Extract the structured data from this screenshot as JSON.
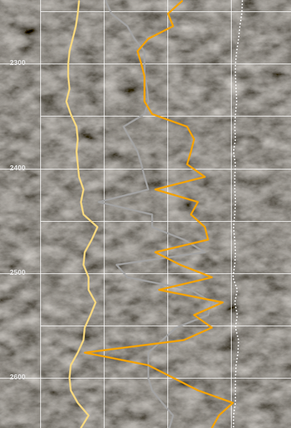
{
  "chart_data": {
    "type": "well_log",
    "y_inverted": true,
    "ylim": [
      2239,
      2648
    ],
    "yticks": [
      2300,
      2400,
      2500,
      2600
    ],
    "minor_yticks": [
      2250,
      2350,
      2450,
      2550
    ],
    "xlim": [
      0,
      4
    ],
    "xticks": [
      0,
      1,
      2,
      3
    ],
    "grid": true,
    "depth": [
      2240,
      2252,
      2264,
      2276,
      2288,
      2300,
      2312,
      2324,
      2336,
      2348,
      2360,
      2372,
      2384,
      2396,
      2408,
      2420,
      2432,
      2444,
      2456,
      2468,
      2480,
      2492,
      2504,
      2516,
      2528,
      2540,
      2552,
      2564,
      2576,
      2588,
      2600,
      2612,
      2624,
      2636,
      2648
    ],
    "series": [
      {
        "color": "#f7d87e",
        "line_style": "solid",
        "values": [
          0.61,
          0.59,
          0.56,
          0.51,
          0.46,
          0.44,
          0.44,
          0.46,
          0.41,
          0.48,
          0.57,
          0.59,
          0.57,
          0.59,
          0.61,
          0.68,
          0.64,
          0.68,
          0.9,
          0.81,
          0.7,
          0.68,
          0.76,
          0.76,
          0.87,
          0.79,
          0.7,
          0.68,
          0.59,
          0.48,
          0.46,
          0.48,
          0.59,
          0.76,
          0.64
        ]
      },
      {
        "color": "#a3a3a3",
        "line_style": "solid",
        "values": [
          1.03,
          1.12,
          1.37,
          1.48,
          1.64,
          1.64,
          1.64,
          1.68,
          1.7,
          1.64,
          1.31,
          1.42,
          1.53,
          1.59,
          1.64,
          1.7,
          0.92,
          1.76,
          1.76,
          2.26,
          2.59,
          1.2,
          1.37,
          2.37,
          2.7,
          2.64,
          2.14,
          1.92,
          1.7,
          1.7,
          1.7,
          1.76,
          1.92,
          2.09,
          2.03
        ]
      },
      {
        "color": "#f5a300",
        "line_style": "solid",
        "values": [
          2.23,
          2.01,
          2.09,
          1.7,
          1.53,
          1.59,
          1.64,
          1.64,
          1.64,
          1.76,
          2.31,
          2.42,
          2.37,
          2.31,
          2.59,
          1.81,
          2.48,
          2.37,
          2.59,
          2.64,
          1.81,
          2.2,
          2.7,
          1.87,
          2.87,
          2.42,
          2.7,
          2.26,
          0.7,
          1.7,
          2.09,
          2.48,
          3.03,
          2.81,
          2.7
        ]
      },
      {
        "color": "#ffffff",
        "line_style": "dotted",
        "values": [
          3.18,
          3.17,
          3.14,
          3.12,
          3.09,
          3.07,
          3.07,
          3.08,
          3.09,
          3.07,
          3.06,
          3.07,
          3.04,
          3.07,
          3.06,
          3.06,
          3.07,
          3.06,
          3.04,
          3.06,
          3.07,
          3.06,
          3.03,
          3.1,
          3.06,
          3.1,
          3.07,
          3.12,
          3.11,
          3.08,
          3.07,
          3.07,
          3.07,
          3.04,
          3.04
        ]
      }
    ]
  }
}
